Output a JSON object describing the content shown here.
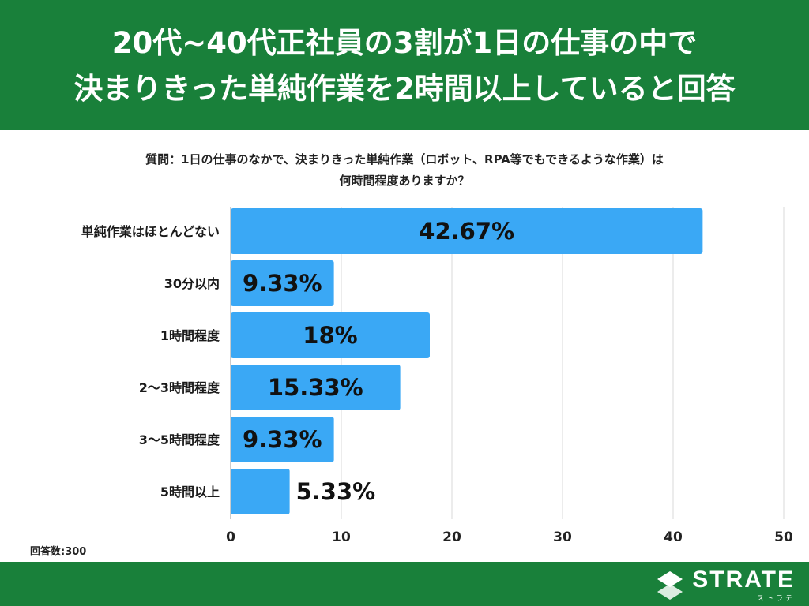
{
  "header": {
    "title_line1": "20代~40代正社員の3割が1日の仕事の中で",
    "title_line2": "決まりきった単純作業を2時間以上していると回答"
  },
  "question": {
    "line1": "質問：1日の仕事のなかで、決まりきった単純作業（ロボット、RPA等でもできるような作業）は",
    "line2": "何時間程度ありますか？"
  },
  "chart_data": {
    "type": "bar",
    "orientation": "horizontal",
    "categories": [
      "単純作業はほとんどない",
      "30分以内",
      "1時間程度",
      "2〜3時間程度",
      "3〜5時間程度",
      "5時間以上"
    ],
    "values": [
      42.67,
      9.33,
      18,
      15.33,
      9.33,
      5.33
    ],
    "value_labels": [
      "42.67%",
      "9.33%",
      "18%",
      "15.33%",
      "9.33%",
      "5.33%"
    ],
    "xlim": [
      0,
      50
    ],
    "xticks": [
      "0",
      "10",
      "20",
      "30",
      "40",
      "50"
    ],
    "grid": true,
    "bar_color": "#3aa8f5",
    "title": "",
    "xlabel": "",
    "ylabel": ""
  },
  "note": "回答数:300",
  "footer": {
    "brand": "STRATE",
    "brand_kana": "ストラテ"
  },
  "colors": {
    "brand_green": "#19803a",
    "bar": "#3aa8f5",
    "grid": "#d9d9d9"
  }
}
